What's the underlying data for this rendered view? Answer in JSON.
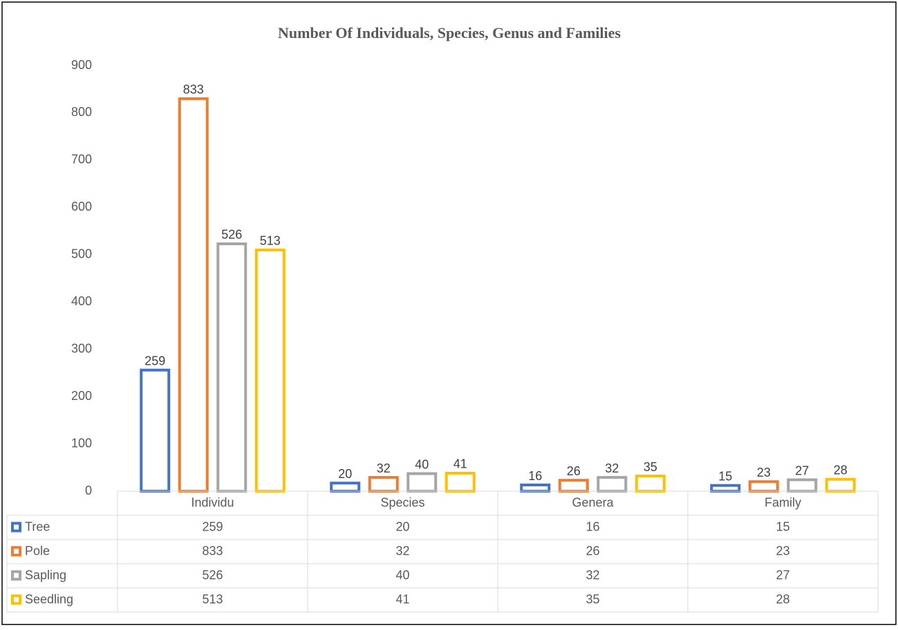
{
  "chart_data": {
    "type": "bar",
    "title": "Number Of Individuals, Species, Genus and Families",
    "categories": [
      "Individu",
      "Species",
      "Genera",
      "Family"
    ],
    "series": [
      {
        "name": "Tree",
        "color": "#4472c4",
        "values": [
          259,
          20,
          16,
          15
        ]
      },
      {
        "name": "Pole",
        "color": "#ed7d31",
        "values": [
          833,
          32,
          26,
          23
        ]
      },
      {
        "name": "Sapling",
        "color": "#a5a5a5",
        "values": [
          526,
          40,
          32,
          27
        ]
      },
      {
        "name": "Seedling",
        "color": "#ffc000",
        "values": [
          513,
          41,
          35,
          28
        ]
      }
    ],
    "ylim": [
      0,
      900
    ],
    "yticks": [
      0,
      100,
      200,
      300,
      400,
      500,
      600,
      700,
      800,
      900
    ],
    "grid": false,
    "legend": "data-table"
  }
}
